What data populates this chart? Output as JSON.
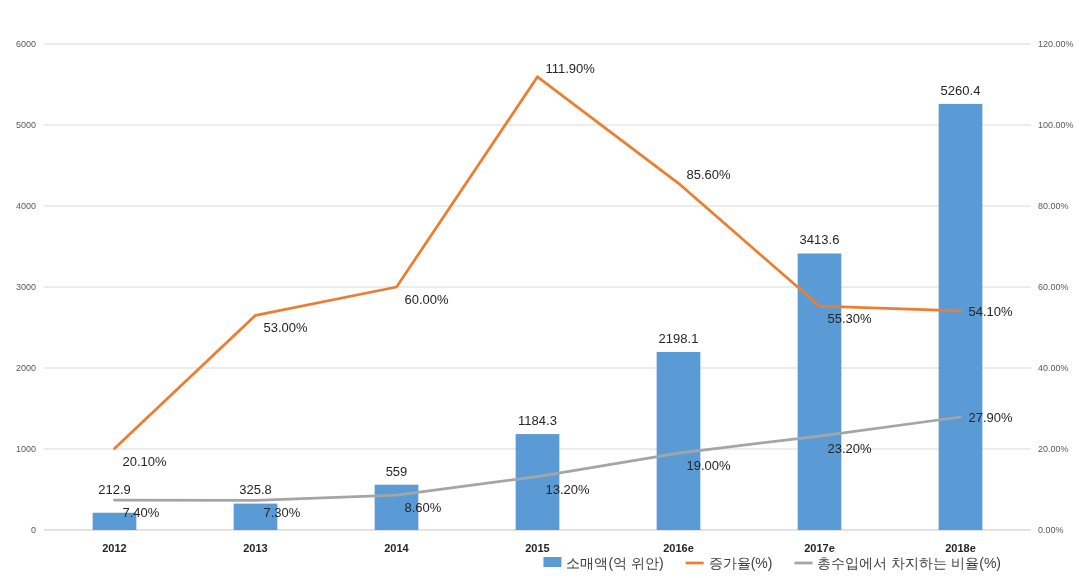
{
  "chart_data": {
    "type": "bar",
    "categories": [
      "2012",
      "2013",
      "2014",
      "2015",
      "2016e",
      "2017e",
      "2018e"
    ],
    "series": [
      {
        "name": "소매액(억 위안)",
        "color": "#5b9bd5",
        "values": [
          212.9,
          325.8,
          559,
          1184.3,
          2198.1,
          3413.6,
          5260.4
        ],
        "value_labels": [
          "212.9",
          "325.8",
          "559",
          "1184.3",
          "2198.1",
          "3413.6",
          "5260.4"
        ]
      },
      {
        "name": "증가율(%)",
        "type": "line",
        "axis": "y2",
        "color": "#ed7d31",
        "values": [
          20.1,
          53.0,
          60.0,
          111.9,
          85.6,
          55.3,
          54.1
        ],
        "value_labels": [
          "20.10%",
          "53.00%",
          "60.00%",
          "111.90%",
          "85.60%",
          "55.30%",
          "54.10%"
        ]
      },
      {
        "name": "총수입에서 차지하는 비율(%)",
        "type": "line",
        "axis": "y2",
        "color": "#a5a5a5",
        "values": [
          7.4,
          7.3,
          8.6,
          13.2,
          19.0,
          23.2,
          27.9
        ],
        "value_labels": [
          "7.40%",
          "7.30%",
          "8.60%",
          "13.20%",
          "19.00%",
          "23.20%",
          "27.90%"
        ]
      }
    ],
    "ylim": [
      0,
      6000
    ],
    "yticks": [
      0,
      1000,
      2000,
      3000,
      4000,
      5000,
      6000
    ],
    "y2lim": [
      0,
      120
    ],
    "y2ticks": [
      {
        "value": 0,
        "label": "0.00%"
      },
      {
        "value": 20,
        "label": "20.00%"
      },
      {
        "value": 40,
        "label": "40.00%"
      },
      {
        "value": 60,
        "label": "60.00%"
      },
      {
        "value": 80,
        "label": "80.00%"
      },
      {
        "value": 100,
        "label": "100.00%"
      },
      {
        "value": 120,
        "label": "120.00%"
      }
    ],
    "grid": "y",
    "legend": "bottom"
  }
}
